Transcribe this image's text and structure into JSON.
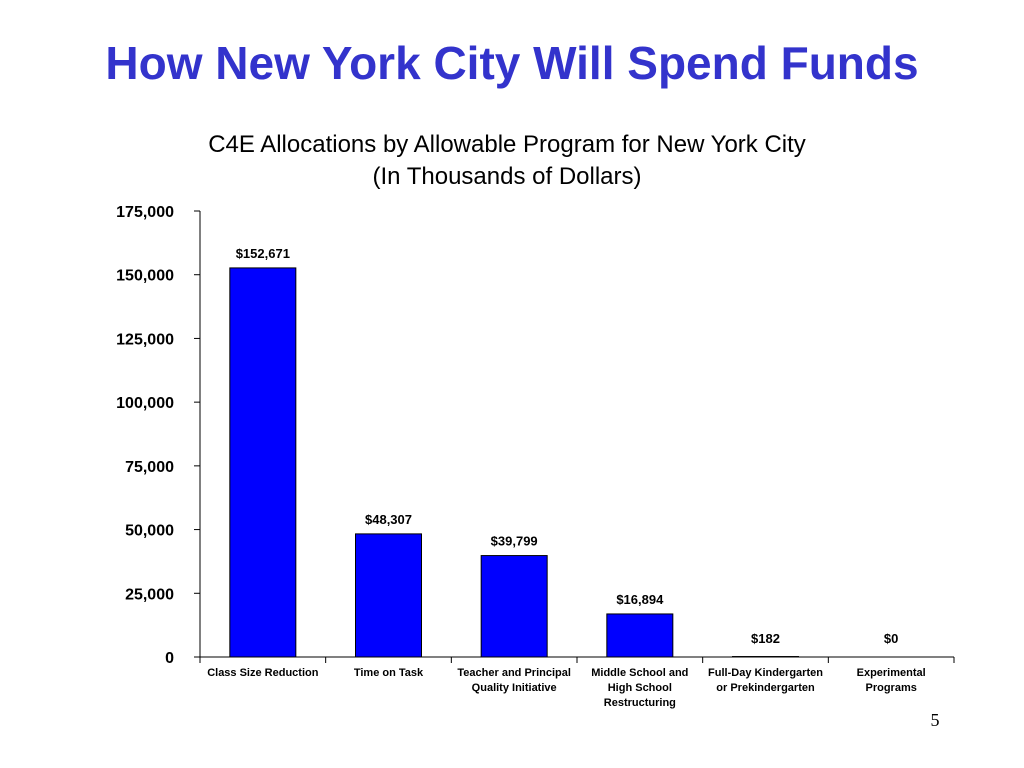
{
  "slide": {
    "title": "How New York City Will Spend Funds",
    "page_number": "5"
  },
  "colors": {
    "title": "#3333CC",
    "bar_fill": "#0000FF",
    "bar_stroke": "#000000",
    "axis": "#000000"
  },
  "chart_data": {
    "type": "bar",
    "title": "C4E Allocations by Allowable Program for New York City",
    "subtitle": "(In Thousands of Dollars)",
    "xlabel": "",
    "ylabel": "",
    "ylim": [
      0,
      175000
    ],
    "yticks": [
      0,
      25000,
      50000,
      75000,
      100000,
      125000,
      150000,
      175000
    ],
    "ytick_labels": [
      "0",
      "25,000",
      "50,000",
      "75,000",
      "100,000",
      "125,000",
      "150,000",
      "175,000"
    ],
    "grid": false,
    "legend": "none",
    "categories": [
      [
        "Class Size Reduction"
      ],
      [
        "Time on Task"
      ],
      [
        "Teacher and Principal",
        "Quality Initiative"
      ],
      [
        "Middle School and",
        "High School",
        "Restructuring"
      ],
      [
        "Full-Day Kindergarten",
        "or Prekindergarten"
      ],
      [
        "Experimental",
        "Programs"
      ]
    ],
    "values": [
      152671,
      48307,
      39799,
      16894,
      182,
      0
    ],
    "data_labels": [
      "$152,671",
      "$48,307",
      "$39,799",
      "$16,894",
      "$182",
      "$0"
    ]
  }
}
